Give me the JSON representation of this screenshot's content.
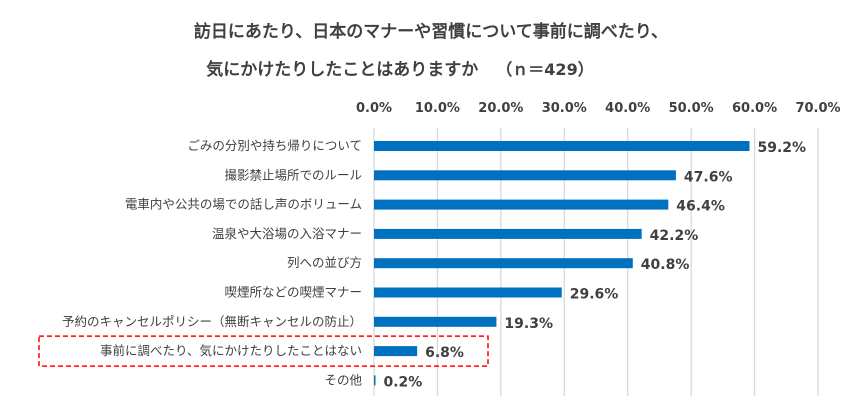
{
  "chart_data": {
    "type": "bar",
    "orientation": "horizontal",
    "title_line1": "訪日にあたり、日本のマナーや習慣について事前に調べたり、",
    "title_line2": "気にかけたりしたことはありますか",
    "sample_size": "（ｎ＝429）",
    "xlim": [
      0,
      70
    ],
    "x_ticks": [
      "0.0%",
      "10.0%",
      "20.0%",
      "30.0%",
      "40.0%",
      "50.0%",
      "60.0%",
      "70.0%"
    ],
    "x_tick_values": [
      0,
      10,
      20,
      30,
      40,
      50,
      60,
      70
    ],
    "grid": true,
    "categories": [
      "ごみの分別や持ち帰りについて",
      "撮影禁止場所でのルール",
      "電車内や公共の場での話し声のボリューム",
      "温泉や大浴場の入浴マナー",
      "列への並び方",
      "喫煙所などの喫煙マナー",
      "予約のキャンセルポリシー（無断キャンセルの防止）",
      "事前に調べたり、気にかけたりしたことはない",
      "その他"
    ],
    "values": [
      59.2,
      47.6,
      46.4,
      42.2,
      40.8,
      29.6,
      19.3,
      6.8,
      0.2
    ],
    "data_labels": [
      "59.2%",
      "47.6%",
      "46.4%",
      "42.2%",
      "40.8%",
      "29.6%",
      "19.3%",
      "6.8%",
      "0.2%"
    ],
    "highlighted_category_index": 7,
    "bar_color": "#0070C0",
    "highlight_box_color": "#FF0000",
    "text_color": "#404040",
    "grid_color": "#D9D9D9"
  }
}
